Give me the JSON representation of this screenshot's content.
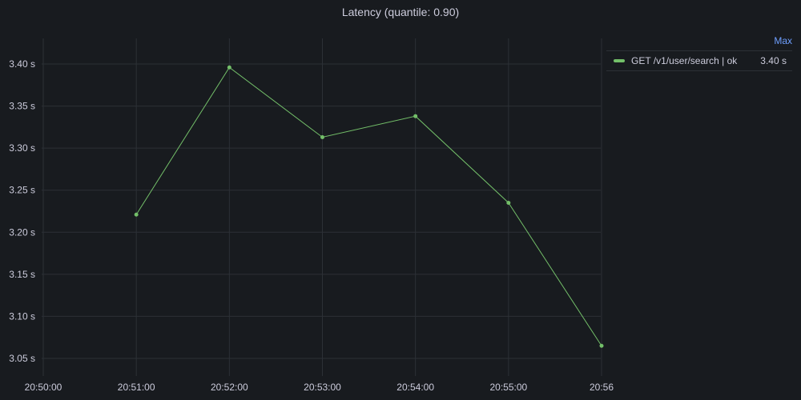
{
  "panel": {
    "title": "Latency (quantile: 0.90)"
  },
  "legend": {
    "header": "Max",
    "items": [
      {
        "name": "GET /v1/user/search | ok",
        "value": "3.40 s",
        "color": "#73bf69"
      }
    ]
  },
  "chart_data": {
    "type": "line",
    "title": "Latency (quantile: 0.90)",
    "xlabel": "",
    "ylabel": "",
    "x_tick_labels": [
      "20:50:00",
      "20:51:00",
      "20:52:00",
      "20:53:00",
      "20:54:00",
      "20:55:00",
      "20:56"
    ],
    "y_tick_values": [
      3.05,
      3.1,
      3.15,
      3.2,
      3.25,
      3.3,
      3.35,
      3.4
    ],
    "y_tick_labels": [
      "3.05 s",
      "3.10 s",
      "3.15 s",
      "3.20 s",
      "3.25 s",
      "3.30 s",
      "3.35 s",
      "3.40 s"
    ],
    "ylim": [
      3.05,
      3.4
    ],
    "grid": true,
    "legend_placement": "right",
    "series": [
      {
        "name": "GET /v1/user/search | ok",
        "color": "#73bf69",
        "x": [
          "20:51:00",
          "20:52:00",
          "20:53:00",
          "20:54:00",
          "20:55:00",
          "20:56:00"
        ],
        "values": [
          3.221,
          3.396,
          3.313,
          3.338,
          3.235,
          3.065
        ]
      }
    ]
  }
}
